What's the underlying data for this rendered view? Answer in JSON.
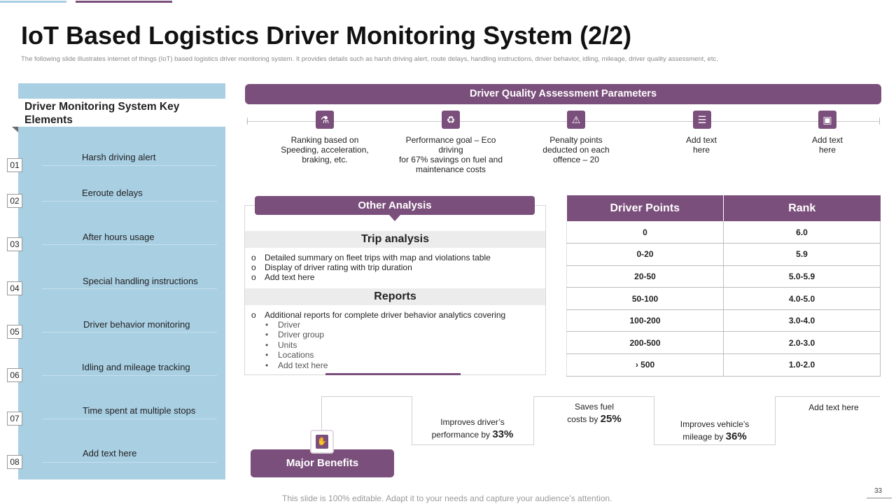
{
  "title": "IoT Based Logistics Driver Monitoring System (2/2)",
  "subtitle": "The following slide illustrates internet of things (IoT) based logistics driver monitoring system. It provides details such as harsh driving alert, route delays, handling instructions, driver behavior, idling, mileage, driver quality assessment, etc.",
  "left_panel": {
    "heading": "Driver Monitoring System Key Elements",
    "items": [
      {
        "num": "01",
        "label": "Harsh driving alert"
      },
      {
        "num": "02",
        "label": "Eeroute delays"
      },
      {
        "num": "03",
        "label": "After hours usage"
      },
      {
        "num": "04",
        "label": "Special handling instructions"
      },
      {
        "num": "05",
        "label": "Driver behavior  monitoring"
      },
      {
        "num": "06",
        "label": "Idling and mileage tracking"
      },
      {
        "num": "07",
        "label": "Time spent at multiple stops"
      },
      {
        "num": "08",
        "label": "Add text here"
      }
    ]
  },
  "quality": {
    "heading": "Driver Quality Assessment Parameters",
    "params": [
      {
        "icon": "driver-seat-icon",
        "line1": "Ranking based on",
        "line2": "Speeding, acceleration,",
        "line3": "braking, etc."
      },
      {
        "icon": "eco-driving-icon",
        "line1": "Performance goal – Eco driving",
        "line2": "for 67%  savings on fuel and",
        "line3": "maintenance costs"
      },
      {
        "icon": "penalty-icon",
        "line1": "Penalty points",
        "line2": "deducted on each",
        "line3": "offence – 20"
      },
      {
        "icon": "clipboard-icon",
        "line1": "Add text",
        "line2": "here",
        "line3": ""
      },
      {
        "icon": "monitor-icon",
        "line1": "Add text",
        "line2": "here",
        "line3": ""
      }
    ]
  },
  "other_analysis": {
    "heading": "Other Analysis",
    "trip_heading": "Trip analysis",
    "trip_items": [
      "Detailed summary on fleet trips with map and violations table",
      "Display of driver rating with trip duration",
      "Add text here"
    ],
    "reports_heading": "Reports",
    "reports_item": "Additional reports for complete driver behavior analytics covering",
    "reports_sub": [
      "Driver",
      "Driver group",
      "Units",
      "Locations",
      "Add text here"
    ],
    "bullet": "o",
    "sub_bullet": "•"
  },
  "points_table": {
    "headers": [
      "Driver Points",
      "Rank"
    ],
    "rows": [
      [
        "0",
        "6.0"
      ],
      [
        "0-20",
        "5.9"
      ],
      [
        "20-50",
        "5.0-5.9"
      ],
      [
        "50-100",
        "4.0-5.0"
      ],
      [
        "100-200",
        "3.0-4.0"
      ],
      [
        "200-500",
        "2.0-3.0"
      ],
      [
        "›   500",
        "1.0-2.0"
      ]
    ]
  },
  "benefits": {
    "heading": "Major Benefits",
    "b1_text": "Improves driver’s",
    "b1_text2": "performance by",
    "b1_val": "33%",
    "b2_text": "Saves fuel",
    "b2_text2": "costs by",
    "b2_val": "25%",
    "b3_text": "Improves vehicle’s",
    "b3_text2": "mileage by",
    "b3_val": "36%",
    "b4_text": "Add text here"
  },
  "footer": "This slide is 100% editable. Adapt it to your needs and capture your audience’s attention.",
  "page_number": "33",
  "colors": {
    "accent": "#7b4f7b",
    "panel": "#a9cfe3"
  }
}
